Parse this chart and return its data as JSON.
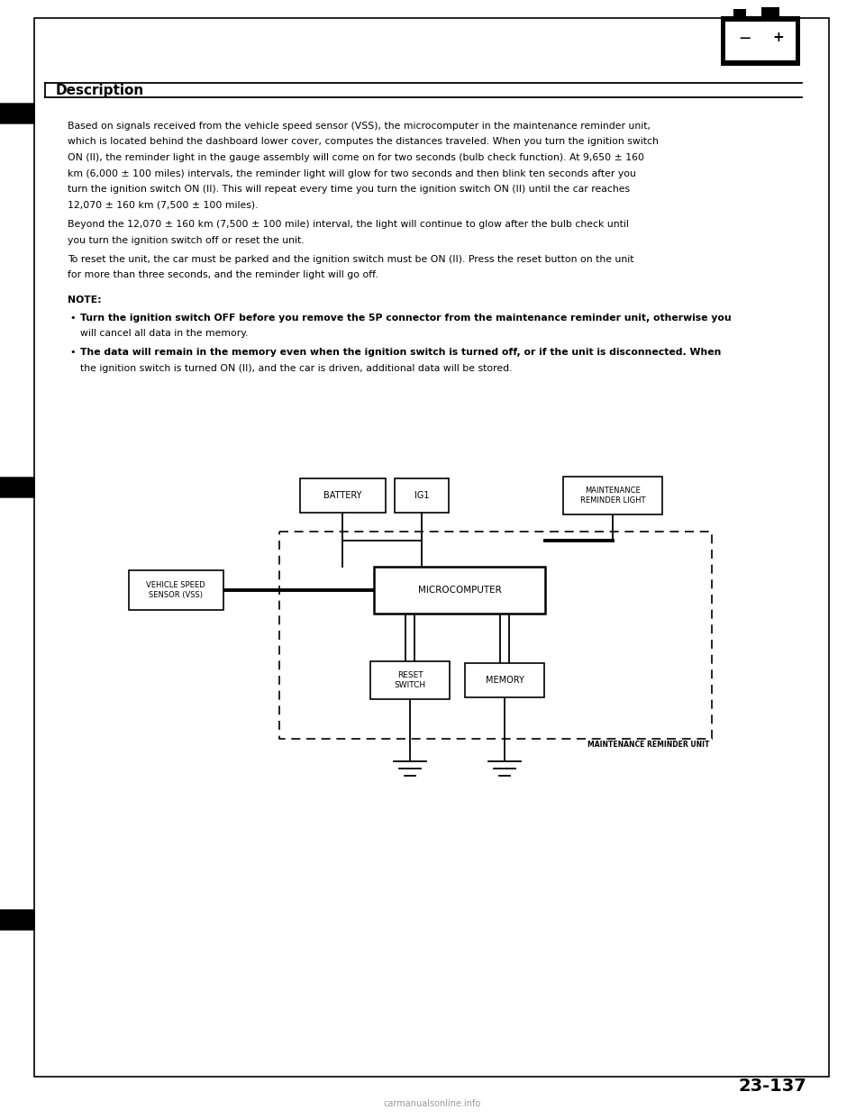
{
  "bg_color": "#ffffff",
  "text_color": "#000000",
  "title": "Description",
  "body_paragraphs": [
    [
      "Based on signals received from the vehicle speed sensor (VSS), the microcomputer in the maintenance reminder unit,",
      "which is located behind the dashboard lower cover, computes the distances traveled. When you turn the ignition switch",
      "ON (II), the reminder light in the gauge assembly will come on for two seconds (bulb check function). At 9,650 ± 160",
      "km (6,000 ± 100 miles) intervals, the reminder light will glow for two seconds and then blink ten seconds after you",
      "turn the ignition switch ON (II). This will repeat every time you turn the ignition switch ON (II) until the car reaches",
      "12,070 ± 160 km (7,500 ± 100 miles)."
    ],
    [
      "Beyond the 12,070 ± 160 km (7,500 ± 100 mile) interval, the light will continue to glow after the bulb check until",
      "you turn the ignition switch off or reset the unit."
    ],
    [
      "To reset the unit, the car must be parked and the ignition switch must be ON (II). Press the reset button on the unit",
      "for more than three seconds, and the reminder light will go off."
    ]
  ],
  "note_title": "NOTE:",
  "note_bullets": [
    [
      "Turn the ignition switch OFF before you remove the 5P connector from the maintenance reminder unit, otherwise you",
      "will cancel all data in the memory."
    ],
    [
      "The data will remain in the memory even when the ignition switch is turned off, or if the unit is disconnected. When",
      "the ignition switch is turned ON (II), and the car is driven, additional data will be stored."
    ]
  ],
  "page_number": "23-137",
  "footer_text": "carmanualsonline.info",
  "maint_unit_label": "MAINTENANCE REMINDER UNIT"
}
